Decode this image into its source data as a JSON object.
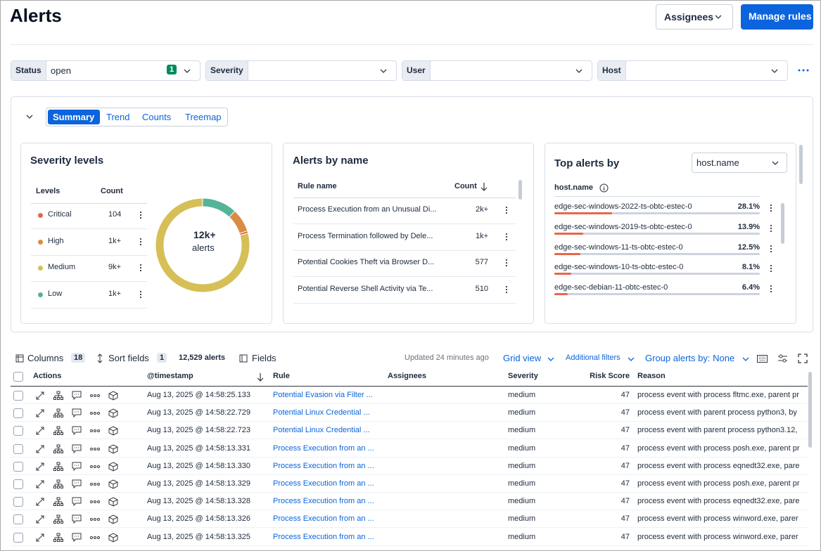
{
  "header": {
    "title": "Alerts",
    "assignees_button": "Assignees",
    "manage_button": "Manage rules"
  },
  "filters": [
    {
      "label": "Status",
      "value": "open",
      "count": 1
    },
    {
      "label": "Severity"
    },
    {
      "label": "User"
    },
    {
      "label": "Host"
    }
  ],
  "tabs": [
    "Summary",
    "Trend",
    "Counts",
    "Treemap"
  ],
  "severity": {
    "title": "Severity levels",
    "columns": [
      "Levels",
      "Count"
    ],
    "rows": [
      {
        "level": "Critical",
        "count": "104",
        "color": "#e7664c",
        "share": 0.8
      },
      {
        "level": "High",
        "count": "1k+",
        "color": "#da8b45",
        "share": 8
      },
      {
        "level": "Medium",
        "count": "9k+",
        "color": "#d6bf57",
        "share": 79
      },
      {
        "level": "Low",
        "count": "1k+",
        "color": "#54b399",
        "share": 12
      }
    ],
    "donut_total": "12k+",
    "donut_unit": "alerts"
  },
  "alerts_by_name": {
    "title": "Alerts by name",
    "columns": [
      "Rule name",
      "Count"
    ],
    "rows": [
      {
        "name": "Process Execution from an Unusual Di...",
        "count": "2k+"
      },
      {
        "name": "Process Termination followed by Dele...",
        "count": "1k+"
      },
      {
        "name": "Potential Cookies Theft via Browser D...",
        "count": 577
      },
      {
        "name": "Potential Reverse Shell Activity via Te...",
        "count": 510
      }
    ]
  },
  "top_alerts": {
    "title": "Top alerts by",
    "select": "host.name",
    "column": "host.name",
    "rows": [
      {
        "name": "edge-sec-windows-2022-ts-obtc-estec-0",
        "value": 28.1,
        "value_label": "28.1%"
      },
      {
        "name": "edge-sec-windows-2019-ts-obtc-estec-0",
        "value": 13.9,
        "value_label": "13.9%"
      },
      {
        "name": "edge-sec-windows-11-ts-obtc-estec-0",
        "value": 12.5,
        "value_label": "12.5%"
      },
      {
        "name": "edge-sec-windows-10-ts-obtc-estec-0",
        "value": 8.1,
        "value_label": "8.1%"
      },
      {
        "name": "edge-sec-debian-11-obtc-estec-0",
        "value": 6.4,
        "value_label": "6.4%"
      }
    ]
  },
  "toolbar": {
    "columns": "Columns",
    "columns_count": 18,
    "sort": "Sort fields",
    "sort_count": 1,
    "alerts_count": "12,529 alerts",
    "fields": "Fields",
    "updated": "Updated 24 minutes ago",
    "grid_view": "Grid view",
    "additional_filters": "Additional filters",
    "group_by": "Group alerts by: None"
  },
  "table": {
    "columns": [
      "Actions",
      "@timestamp",
      "Rule",
      "Assignees",
      "Severity",
      "Risk Score",
      "Reason"
    ],
    "rows": [
      {
        "timestamp": "Aug 13, 2025 @ 14:58:25.133",
        "rule": "Potential Evasion via Filter ...",
        "severity": "medium",
        "risk": 47,
        "reason": "process event with process fltmc.exe, parent pr"
      },
      {
        "timestamp": "Aug 13, 2025 @ 14:58:22.729",
        "rule": "Potential Linux Credential ...",
        "severity": "medium",
        "risk": 47,
        "reason": "process event with parent process python3, by"
      },
      {
        "timestamp": "Aug 13, 2025 @ 14:58:22.723",
        "rule": "Potential Linux Credential ...",
        "severity": "medium",
        "risk": 47,
        "reason": "process event with parent process python3.12,"
      },
      {
        "timestamp": "Aug 13, 2025 @ 14:58:13.331",
        "rule": "Process Execution from an ...",
        "severity": "medium",
        "risk": 47,
        "reason": "process event with process posh.exe, parent pr"
      },
      {
        "timestamp": "Aug 13, 2025 @ 14:58:13.330",
        "rule": "Process Execution from an ...",
        "severity": "medium",
        "risk": 47,
        "reason": "process event with process eqnedt32.exe, pare"
      },
      {
        "timestamp": "Aug 13, 2025 @ 14:58:13.329",
        "rule": "Process Execution from an ...",
        "severity": "medium",
        "risk": 47,
        "reason": "process event with process posh.exe, parent pr"
      },
      {
        "timestamp": "Aug 13, 2025 @ 14:58:13.328",
        "rule": "Process Execution from an ...",
        "severity": "medium",
        "risk": 47,
        "reason": "process event with process eqnedt32.exe, pare"
      },
      {
        "timestamp": "Aug 13, 2025 @ 14:58:13.326",
        "rule": "Process Execution from an ...",
        "severity": "medium",
        "risk": 47,
        "reason": "process event with process winword.exe, parer"
      },
      {
        "timestamp": "Aug 13, 2025 @ 14:58:13.325",
        "rule": "Process Execution from an ...",
        "severity": "medium",
        "risk": 47,
        "reason": "process event with process winword.exe, parer"
      }
    ]
  }
}
